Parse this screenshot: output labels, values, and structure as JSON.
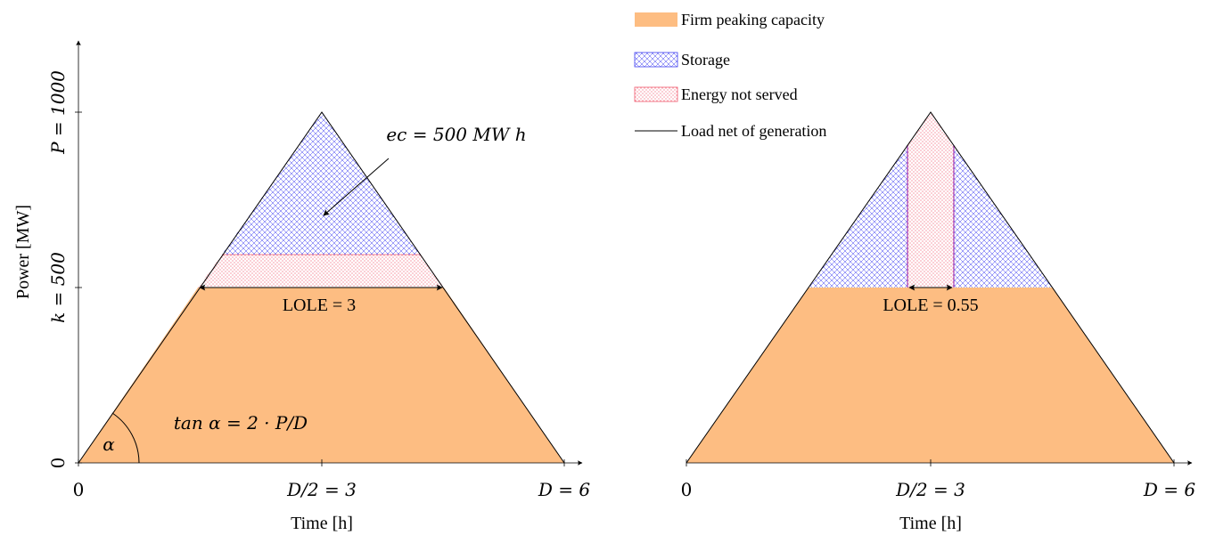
{
  "colors": {
    "firm": "#fdbd82",
    "storage": "#3b3bf0",
    "ens": "#f05a6e",
    "line": "#000000",
    "purple": "#a23bb8"
  },
  "legend": {
    "firm": "Firm peaking capacity",
    "storage": "Storage",
    "ens": "Energy not served",
    "load": "Load net of generation"
  },
  "left": {
    "y_axis_label": "Power [MW]",
    "x_axis_label": "Time [h]",
    "y_tick_p": "P = 1000",
    "y_tick_k": "k = 500",
    "y_tick_0": "0",
    "x_tick_0": "0",
    "x_tick_mid": "D/2 = 3",
    "x_tick_end": "D = 6",
    "ec_label": "ec = 500 MW h",
    "lole_label": "LOLE = 3",
    "tan_label": "tan α = 2 · P/D",
    "alpha_label": "α"
  },
  "right": {
    "x_axis_label": "Time [h]",
    "x_tick_0": "0",
    "x_tick_mid": "D/2 = 3",
    "x_tick_end": "D = 6",
    "lole_label": "LOLE = 0.55"
  }
}
